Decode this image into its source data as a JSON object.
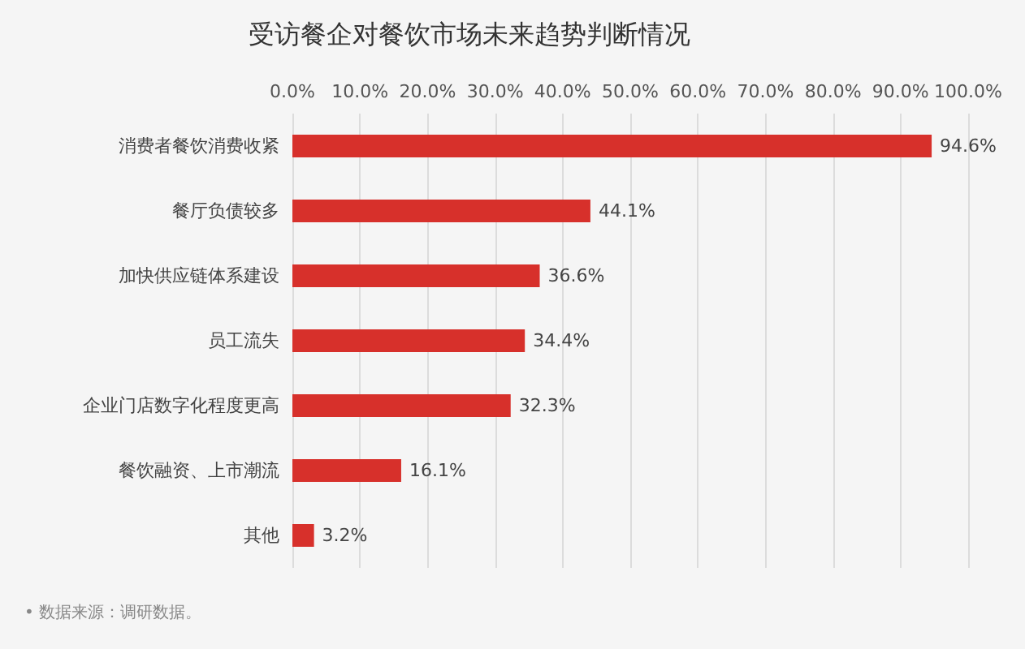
{
  "chart_data": {
    "type": "bar",
    "orientation": "horizontal",
    "title": "受访餐企对餐饮市场未来趋势判断情况",
    "categories": [
      "消费者餐饮消费收紧",
      "餐厅负债较多",
      "加快供应链体系建设",
      "员工流失",
      "企业门店数字化程度更高",
      "餐饮融资、上市潮流",
      "其他"
    ],
    "values": [
      94.6,
      44.1,
      36.6,
      34.4,
      32.3,
      16.1,
      3.2
    ],
    "color": "#d7302b",
    "value_labels": [
      "94.6%",
      "44.1%",
      "36.6%",
      "34.4%",
      "32.3%",
      "16.1%",
      "3.2%"
    ],
    "xlim": [
      0,
      100
    ],
    "xticks": [
      {
        "value": 0,
        "label": "0.0%"
      },
      {
        "value": 10,
        "label": "10.0%"
      },
      {
        "value": 20,
        "label": "20.0%"
      },
      {
        "value": 30,
        "label": "30.0%"
      },
      {
        "value": 40,
        "label": "40.0%"
      },
      {
        "value": 50,
        "label": "50.0%"
      },
      {
        "value": 60,
        "label": "60.0%"
      },
      {
        "value": 70,
        "label": "70.0%"
      },
      {
        "value": 80,
        "label": "80.0%"
      },
      {
        "value": 90,
        "label": "90.0%"
      },
      {
        "value": 100,
        "label": "100.0%"
      }
    ],
    "grid": "x",
    "annotations": [
      "• 数据来源：调研数据。"
    ]
  }
}
